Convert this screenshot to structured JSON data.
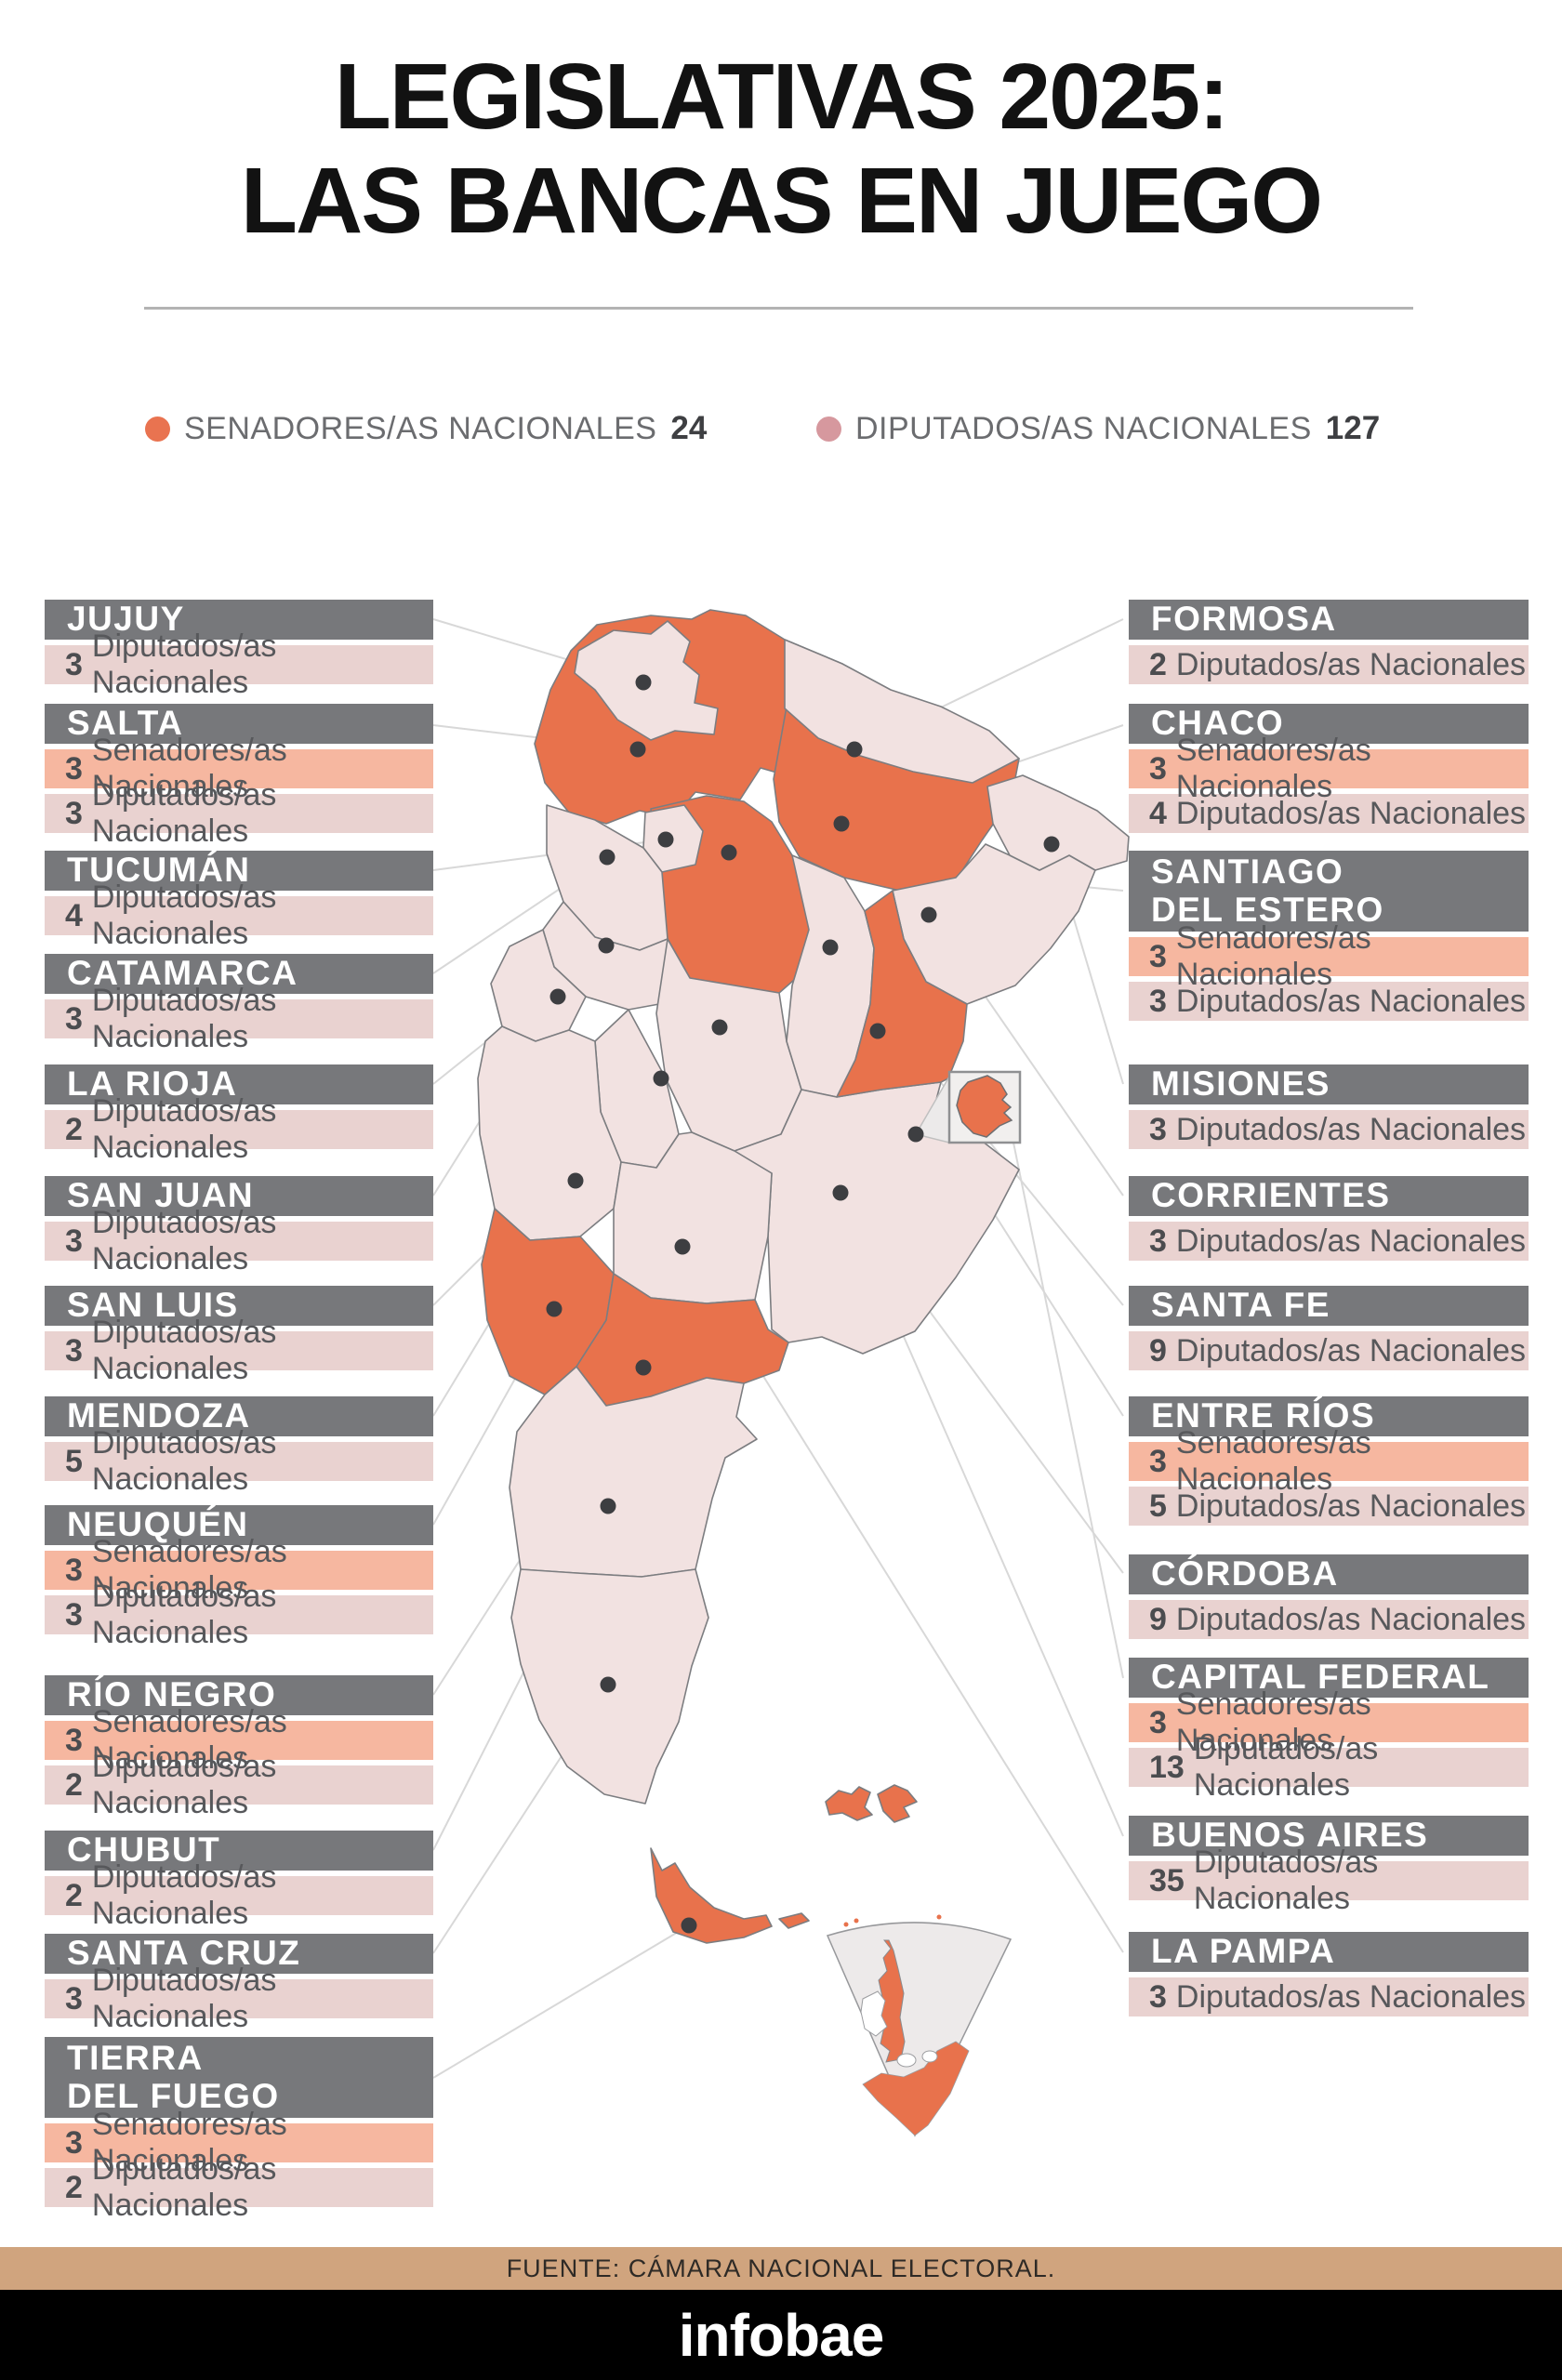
{
  "title": {
    "line1": "LEGISLATIVAS 2025:",
    "line2": "LAS BANCAS EN JUEGO"
  },
  "legend": {
    "senators": {
      "label": "SENADORES/AS NACIONALES",
      "value": "24"
    },
    "deputies": {
      "label": "DIPUTADOS/AS NACIONALES",
      "value": "127"
    }
  },
  "left_column": [
    {
      "name": "JUJUY",
      "seats": [
        {
          "count": "3",
          "type": "deputies",
          "label": "Diputados/as Nacionales"
        }
      ]
    },
    {
      "name": "SALTA",
      "seats": [
        {
          "count": "3",
          "type": "senators",
          "label": "Senadores/as Nacionales"
        },
        {
          "count": "3",
          "type": "deputies",
          "label": "Diputados/as Nacionales"
        }
      ]
    },
    {
      "name": "TUCUMÁN",
      "seats": [
        {
          "count": "4",
          "type": "deputies",
          "label": "Diputados/as Nacionales"
        }
      ]
    },
    {
      "name": "CATAMARCA",
      "seats": [
        {
          "count": "3",
          "type": "deputies",
          "label": "Diputados/as Nacionales"
        }
      ]
    },
    {
      "name": "LA RIOJA",
      "seats": [
        {
          "count": "2",
          "type": "deputies",
          "label": "Diputados/as Nacionales"
        }
      ]
    },
    {
      "name": "SAN JUAN",
      "seats": [
        {
          "count": "3",
          "type": "deputies",
          "label": "Diputados/as Nacionales"
        }
      ]
    },
    {
      "name": "SAN LUIS",
      "seats": [
        {
          "count": "3",
          "type": "deputies",
          "label": "Diputados/as Nacionales"
        }
      ]
    },
    {
      "name": "MENDOZA",
      "seats": [
        {
          "count": "5",
          "type": "deputies",
          "label": "Diputados/as Nacionales"
        }
      ]
    },
    {
      "name": "NEUQUÉN",
      "seats": [
        {
          "count": "3",
          "type": "senators",
          "label": "Senadores/as Nacionales"
        },
        {
          "count": "3",
          "type": "deputies",
          "label": "Diputados/as Nacionales"
        }
      ]
    },
    {
      "name": "RÍO  NEGRO",
      "seats": [
        {
          "count": "3",
          "type": "senators",
          "label": "Senadores/as Nacionales"
        },
        {
          "count": "2",
          "type": "deputies",
          "label": "Diputados/as Nacionales"
        }
      ]
    },
    {
      "name": "CHUBUT",
      "seats": [
        {
          "count": "2",
          "type": "deputies",
          "label": "Diputados/as Nacionales"
        }
      ]
    },
    {
      "name": "SANTA CRUZ",
      "seats": [
        {
          "count": "3",
          "type": "deputies",
          "label": "Diputados/as Nacionales"
        }
      ]
    },
    {
      "name": "TIERRA\nDEL FUEGO",
      "seats": [
        {
          "count": "3",
          "type": "senators",
          "label": "Senadores/as Nacionales"
        },
        {
          "count": "2",
          "type": "deputies",
          "label": "Diputados/as Nacionales"
        }
      ]
    }
  ],
  "right_column": [
    {
      "name": "FORMOSA",
      "seats": [
        {
          "count": "2",
          "type": "deputies",
          "label": "Diputados/as Nacionales"
        }
      ]
    },
    {
      "name": "CHACO",
      "seats": [
        {
          "count": "3",
          "type": "senators",
          "label": "Senadores/as Nacionales"
        },
        {
          "count": "4",
          "type": "deputies",
          "label": "Diputados/as Nacionales"
        }
      ]
    },
    {
      "name": "SANTIAGO\nDEL ESTERO",
      "seats": [
        {
          "count": "3",
          "type": "senators",
          "label": "Senadores/as Nacionales"
        },
        {
          "count": "3",
          "type": "deputies",
          "label": "Diputados/as Nacionales"
        }
      ]
    },
    {
      "name": "MISIONES",
      "seats": [
        {
          "count": "3",
          "type": "deputies",
          "label": "Diputados/as Nacionales"
        }
      ]
    },
    {
      "name": "CORRIENTES",
      "seats": [
        {
          "count": "3",
          "type": "deputies",
          "label": "Diputados/as Nacionales"
        }
      ]
    },
    {
      "name": "SANTA FE",
      "seats": [
        {
          "count": "9",
          "type": "deputies",
          "label": "Diputados/as Nacionales"
        }
      ]
    },
    {
      "name": "ENTRE RÍOS",
      "seats": [
        {
          "count": "3",
          "type": "senators",
          "label": "Senadores/as Nacionales"
        },
        {
          "count": "5",
          "type": "deputies",
          "label": "Diputados/as Nacionales"
        }
      ]
    },
    {
      "name": "CÓRDOBA",
      "seats": [
        {
          "count": "9",
          "type": "deputies",
          "label": "Diputados/as Nacionales"
        }
      ]
    },
    {
      "name": "CAPITAL FEDERAL",
      "seats": [
        {
          "count": "3",
          "type": "senators",
          "label": "Senadores/as Nacionales"
        },
        {
          "count": "13",
          "type": "deputies",
          "label": "Diputados/as Nacionales"
        }
      ]
    },
    {
      "name": "BUENOS AIRES",
      "seats": [
        {
          "count": "35",
          "type": "deputies",
          "label": "Diputados/as Nacionales"
        }
      ]
    },
    {
      "name": "LA PAMPA",
      "seats": [
        {
          "count": "3",
          "type": "deputies",
          "label": "Diputados/as Nacionales"
        }
      ]
    }
  ],
  "footer": {
    "source": "FUENTE: CÁMARA NACIONAL ELECTORAL.",
    "brand": "infobae"
  },
  "colors": {
    "senators_accent": "#e97350",
    "deputies_accent": "#d6989e",
    "header_bar_bg": "#77787b",
    "senator_row_bg": "#f6b7a0",
    "deputy_row_bg": "#e9d2d0",
    "map_senators": "#e8724c",
    "map_deputies": "#f2e2e1",
    "source_bar_bg": "#d0a47e",
    "brand_bar_bg": "#000000"
  }
}
